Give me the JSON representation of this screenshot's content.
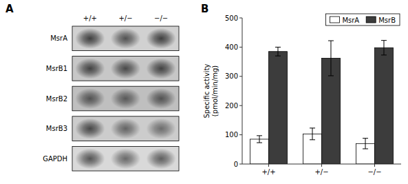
{
  "chart_data": [
    {
      "type": "blot",
      "title": "A",
      "categories": [
        "+/+",
        "+/−",
        "−/−"
      ],
      "series": [
        {
          "name": "MsrA",
          "values": [
            0.75,
            0.65,
            0.75
          ],
          "background": 0.82
        },
        {
          "name": "MsrB1",
          "values": [
            0.72,
            0.68,
            0.72
          ],
          "background": 0.78
        },
        {
          "name": "MsrB2",
          "values": [
            0.62,
            0.58,
            0.62
          ],
          "background": 0.75
        },
        {
          "name": "MsrB3",
          "values": [
            0.7,
            0.55,
            0.5
          ],
          "background": 0.8
        },
        {
          "name": "GAPDH",
          "values": [
            0.65,
            0.55,
            0.6
          ],
          "background": 0.85
        }
      ]
    },
    {
      "type": "bar",
      "title": "B",
      "categories": [
        "+/+",
        "+/−",
        "−/−"
      ],
      "series": [
        {
          "name": "MsrA",
          "color": "#ffffff",
          "values": [
            85,
            103,
            70
          ],
          "errors": [
            12,
            20,
            18
          ]
        },
        {
          "name": "MsrB",
          "color": "#3c3c3c",
          "values": [
            385,
            362,
            398
          ],
          "errors": [
            15,
            60,
            25
          ]
        }
      ],
      "ylabel": "Specific activity\n(pmol/min/mg)",
      "ylim": [
        0,
        500
      ],
      "yticks": [
        0,
        100,
        200,
        300,
        400,
        500
      ],
      "grid": false,
      "legend": "upper right"
    }
  ]
}
